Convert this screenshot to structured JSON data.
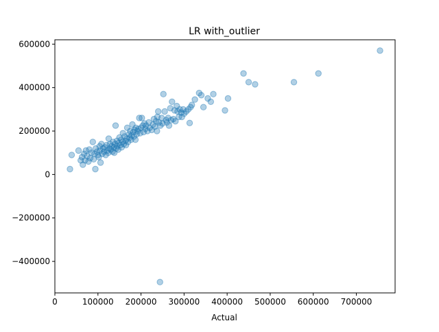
{
  "chart_data": {
    "type": "scatter",
    "title": "LR with_outlier",
    "xlabel": "Actual",
    "ylabel": "",
    "xlim": [
      0,
      790000
    ],
    "ylim": [
      -545000,
      620000
    ],
    "x_ticks": [
      0,
      100000,
      200000,
      300000,
      400000,
      500000,
      600000,
      700000
    ],
    "x_tick_labels": [
      "0",
      "100000",
      "200000",
      "300000",
      "400000",
      "500000",
      "600000",
      "700000"
    ],
    "y_ticks": [
      -400000,
      -200000,
      0,
      200000,
      400000,
      600000
    ],
    "y_tick_labels": [
      "−400000",
      "−200000",
      "0",
      "200000",
      "400000",
      "600000"
    ],
    "grid": false,
    "marker_color": "#1f77b4",
    "marker_alpha": 0.35,
    "series": [
      {
        "points": [
          [
            35000,
            25000
          ],
          [
            39000,
            90000
          ],
          [
            55000,
            110000
          ],
          [
            60000,
            65000
          ],
          [
            63000,
            80000
          ],
          [
            65000,
            45000
          ],
          [
            68000,
            95000
          ],
          [
            70000,
            65000
          ],
          [
            72000,
            110000
          ],
          [
            75000,
            85000
          ],
          [
            78000,
            60000
          ],
          [
            80000,
            115000
          ],
          [
            82000,
            75000
          ],
          [
            85000,
            100000
          ],
          [
            88000,
            150000
          ],
          [
            90000,
            70000
          ],
          [
            92000,
            95000
          ],
          [
            94000,
            25000
          ],
          [
            95000,
            120000
          ],
          [
            98000,
            105000
          ],
          [
            100000,
            90000
          ],
          [
            102000,
            80000
          ],
          [
            104000,
            130000
          ],
          [
            105000,
            110000
          ],
          [
            106000,
            55000
          ],
          [
            108000,
            140000
          ],
          [
            110000,
            95000
          ],
          [
            112000,
            120000
          ],
          [
            114000,
            105000
          ],
          [
            116000,
            125000
          ],
          [
            118000,
            90000
          ],
          [
            120000,
            135000
          ],
          [
            122000,
            110000
          ],
          [
            124000,
            100000
          ],
          [
            125000,
            165000
          ],
          [
            127000,
            120000
          ],
          [
            128000,
            140000
          ],
          [
            130000,
            115000
          ],
          [
            132000,
            130000
          ],
          [
            134000,
            105000
          ],
          [
            135000,
            150000
          ],
          [
            137000,
            125000
          ],
          [
            138000,
            100000
          ],
          [
            140000,
            140000
          ],
          [
            141000,
            225000
          ],
          [
            142000,
            120000
          ],
          [
            144000,
            155000
          ],
          [
            145000,
            130000
          ],
          [
            147000,
            115000
          ],
          [
            148000,
            145000
          ],
          [
            150000,
            170000
          ],
          [
            152000,
            135000
          ],
          [
            154000,
            160000
          ],
          [
            155000,
            125000
          ],
          [
            157000,
            150000
          ],
          [
            158000,
            190000
          ],
          [
            160000,
            140000
          ],
          [
            162000,
            175000
          ],
          [
            164000,
            155000
          ],
          [
            165000,
            135000
          ],
          [
            167000,
            165000
          ],
          [
            168000,
            215000
          ],
          [
            170000,
            150000
          ],
          [
            172000,
            185000
          ],
          [
            174000,
            170000
          ],
          [
            175000,
            200000
          ],
          [
            177000,
            160000
          ],
          [
            178000,
            180000
          ],
          [
            180000,
            230000
          ],
          [
            182000,
            195000
          ],
          [
            184000,
            175000
          ],
          [
            185000,
            205000
          ],
          [
            187000,
            160000
          ],
          [
            188000,
            215000
          ],
          [
            190000,
            185000
          ],
          [
            192000,
            200000
          ],
          [
            194000,
            210000
          ],
          [
            196000,
            260000
          ],
          [
            198000,
            190000
          ],
          [
            200000,
            215000
          ],
          [
            202000,
            260000
          ],
          [
            204000,
            225000
          ],
          [
            206000,
            195000
          ],
          [
            208000,
            235000
          ],
          [
            210000,
            210000
          ],
          [
            212000,
            225000
          ],
          [
            215000,
            200000
          ],
          [
            218000,
            240000
          ],
          [
            220000,
            215000
          ],
          [
            225000,
            205000
          ],
          [
            228000,
            230000
          ],
          [
            230000,
            255000
          ],
          [
            232000,
            220000
          ],
          [
            235000,
            245000
          ],
          [
            237000,
            200000
          ],
          [
            238000,
            265000
          ],
          [
            240000,
            290000
          ],
          [
            242000,
            240000
          ],
          [
            244000,
            -495000
          ],
          [
            245000,
            225000
          ],
          [
            248000,
            260000
          ],
          [
            250000,
            235000
          ],
          [
            252000,
            370000
          ],
          [
            255000,
            290000
          ],
          [
            258000,
            250000
          ],
          [
            260000,
            240000
          ],
          [
            263000,
            260000
          ],
          [
            265000,
            225000
          ],
          [
            268000,
            305000
          ],
          [
            270000,
            250000
          ],
          [
            272000,
            335000
          ],
          [
            275000,
            255000
          ],
          [
            278000,
            295000
          ],
          [
            280000,
            245000
          ],
          [
            283000,
            315000
          ],
          [
            285000,
            290000
          ],
          [
            288000,
            265000
          ],
          [
            290000,
            300000
          ],
          [
            293000,
            285000
          ],
          [
            295000,
            265000
          ],
          [
            298000,
            300000
          ],
          [
            300000,
            280000
          ],
          [
            305000,
            290000
          ],
          [
            310000,
            300000
          ],
          [
            313000,
            237000
          ],
          [
            315000,
            310000
          ],
          [
            318000,
            320000
          ],
          [
            325000,
            345000
          ],
          [
            335000,
            375000
          ],
          [
            340000,
            365000
          ],
          [
            345000,
            310000
          ],
          [
            355000,
            350000
          ],
          [
            362000,
            335000
          ],
          [
            368000,
            370000
          ],
          [
            395000,
            295000
          ],
          [
            402000,
            350000
          ],
          [
            438000,
            465000
          ],
          [
            450000,
            425000
          ],
          [
            465000,
            415000
          ],
          [
            555000,
            425000
          ],
          [
            612000,
            465000
          ],
          [
            755000,
            570000
          ]
        ]
      }
    ]
  }
}
